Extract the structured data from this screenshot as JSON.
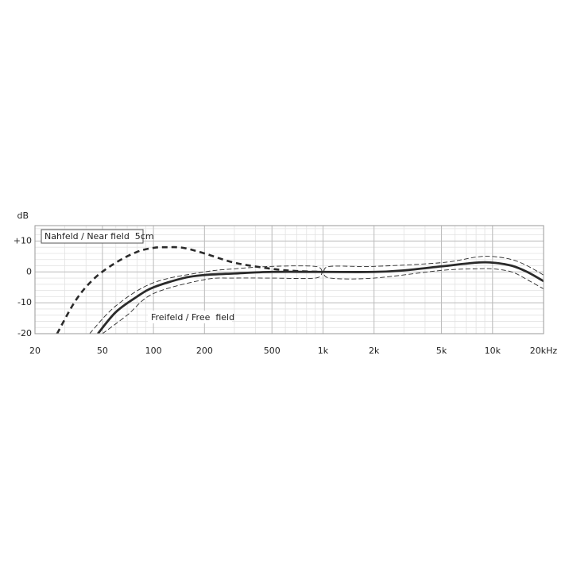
{
  "chart_data": {
    "type": "line",
    "y_label": "dB",
    "log_x": true,
    "grid": true,
    "minor_grid": true,
    "xlim": [
      20,
      20000
    ],
    "ylim": [
      -20,
      15
    ],
    "xticks": [
      20,
      50,
      100,
      200,
      500,
      {
        "value": 1000,
        "label": "1k"
      },
      {
        "value": 2000,
        "label": "2k"
      },
      {
        "value": 5000,
        "label": "5k"
      },
      {
        "value": 10000,
        "label": "10k"
      },
      {
        "value": 20000,
        "label": "20kHz"
      }
    ],
    "yticks": [
      {
        "value": 10,
        "label": "+10"
      },
      0,
      -10,
      -20
    ],
    "series": [
      {
        "name": "Nahfeld / Near field  5cm",
        "color": "#2a2a2a",
        "style": "dashed",
        "width": 2.6,
        "boxed": true,
        "x": [
          27,
          35,
          45,
          60,
          80,
          100,
          120,
          150,
          200,
          300,
          500,
          700,
          1000
        ],
        "values": [
          -20,
          -9,
          -2,
          3,
          6.5,
          7.8,
          8,
          7.8,
          6,
          3,
          1,
          0.3,
          0
        ]
      },
      {
        "name": "Freifeld / Free  field",
        "color": "#2a2a2a",
        "style": "solid",
        "width": 2.8,
        "boxed": false,
        "x": [
          47,
          60,
          80,
          100,
          150,
          200,
          300,
          500,
          1000,
          2000,
          3000,
          5000,
          8000,
          10000,
          13000,
          16000,
          20000
        ],
        "values": [
          -20,
          -13,
          -8,
          -5,
          -2,
          -1,
          -0.5,
          0,
          0,
          0,
          0.5,
          1.8,
          3,
          3,
          2,
          0,
          -3
        ]
      },
      {
        "color": "#2a2a2a",
        "style": "thin-dashed",
        "width": 0.9,
        "x": [
          42,
          60,
          100,
          200,
          300,
          500,
          900,
          1000,
          1100,
          2000,
          5000,
          8000,
          10000,
          13000,
          16000,
          20000
        ],
        "values": [
          -20,
          -11,
          -3.5,
          0,
          1,
          1.8,
          1.8,
          0,
          1.8,
          1.8,
          3,
          4.8,
          5,
          4,
          2,
          -1
        ]
      },
      {
        "color": "#2a2a2a",
        "style": "thin-dashed",
        "width": 0.9,
        "x": [
          50,
          70,
          100,
          200,
          300,
          500,
          900,
          1000,
          1100,
          2000,
          5000,
          8000,
          10000,
          13000,
          16000,
          20000
        ],
        "values": [
          -20,
          -14,
          -7,
          -2.5,
          -2,
          -2,
          -2,
          0,
          -2,
          -2,
          0.5,
          1,
          1,
          0,
          -2.5,
          -5.5
        ]
      }
    ]
  }
}
